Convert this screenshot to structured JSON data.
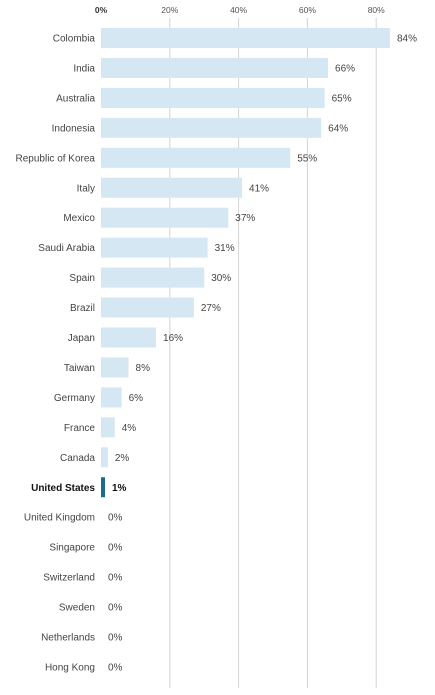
{
  "chart_data": {
    "type": "bar",
    "orientation": "horizontal",
    "xlim": [
      0,
      90
    ],
    "ticks": [
      "0%",
      "20%",
      "40%",
      "60%",
      "80%"
    ],
    "tick_values": [
      0,
      20,
      40,
      60,
      80
    ],
    "categories": [
      "Colombia",
      "India",
      "Australia",
      "Indonesia",
      "Republic of Korea",
      "Italy",
      "Mexico",
      "Saudi Arabia",
      "Spain",
      "Brazil",
      "Japan",
      "Taiwan",
      "Germany",
      "France",
      "Canada",
      "United States",
      "United Kingdom",
      "Singapore",
      "Switzerland",
      "Sweden",
      "Netherlands",
      "Hong Kong"
    ],
    "values": [
      84,
      66,
      65,
      64,
      55,
      41,
      37,
      31,
      30,
      27,
      16,
      8,
      6,
      4,
      2,
      1,
      0,
      0,
      0,
      0,
      0,
      0
    ],
    "value_labels": [
      "84%",
      "66%",
      "65%",
      "64%",
      "55%",
      "41%",
      "37%",
      "31%",
      "30%",
      "27%",
      "16%",
      "8%",
      "6%",
      "4%",
      "2%",
      "1%",
      "0%",
      "0%",
      "0%",
      "0%",
      "0%",
      "0%"
    ],
    "highlight": "United States",
    "grid": true,
    "colors": {
      "bar": "#d5e7f2",
      "highlight": "#1b6d8a",
      "grid": "#d4d4d4"
    }
  }
}
